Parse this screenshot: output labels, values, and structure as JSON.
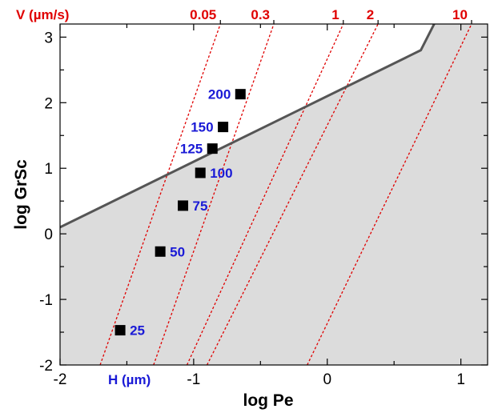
{
  "chart_data": {
    "type": "scatter",
    "xlabel": "log Pe",
    "ylabel": "log GrSc",
    "xlim": [
      -2,
      1.2
    ],
    "ylim": [
      -2,
      3.2
    ],
    "x_ticks": [
      "-2",
      "-1",
      "0",
      "1"
    ],
    "y_ticks": [
      "-2",
      "-1",
      "0",
      "1",
      "2",
      "3"
    ],
    "grid": false,
    "points_series_label": "H (µm)",
    "points": [
      {
        "label": "25",
        "x": -1.55,
        "y": -1.47
      },
      {
        "label": "50",
        "x": -1.25,
        "y": -0.27
      },
      {
        "label": "75",
        "x": -1.08,
        "y": 0.43
      },
      {
        "label": "100",
        "x": -0.95,
        "y": 0.93
      },
      {
        "label": "125",
        "x": -0.86,
        "y": 1.3
      },
      {
        "label": "150",
        "x": -0.78,
        "y": 1.63
      },
      {
        "label": "200",
        "x": -0.65,
        "y": 2.13
      }
    ],
    "boundary_line": [
      [
        -2,
        0.1
      ],
      [
        0.7,
        2.8
      ],
      [
        0.8,
        3.2
      ]
    ],
    "shaded_region": "below boundary line",
    "velocity_axis_title": "V (µm/s)",
    "velocity_lines": [
      {
        "label": "0.05",
        "x_bottom": -1.7,
        "x_top": -0.8
      },
      {
        "label": "0.3",
        "x_bottom": -1.3,
        "x_top": -0.4
      },
      {
        "label": "1",
        "x_bottom": -1.05,
        "x_top": 0.12
      },
      {
        "label": "2",
        "x_bottom": -0.9,
        "x_top": 0.38
      },
      {
        "label": "10",
        "x_bottom": -0.15,
        "x_top": 1.08
      }
    ],
    "colors": {
      "points": "#000000",
      "point_labels": "#1a1ad6",
      "velocity_lines": "#e00000",
      "boundary_line": "#555555",
      "shaded_region": "#dcdcdc"
    }
  }
}
